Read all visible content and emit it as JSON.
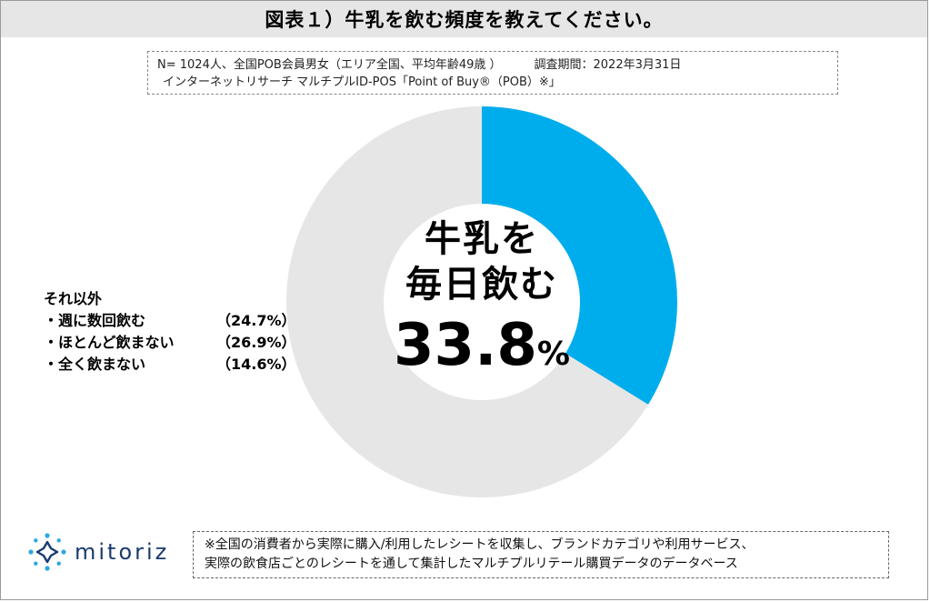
{
  "title": "図表１）牛乳を飲む頻度を教えてください。",
  "meta": {
    "sample": "N= 1024人、全国POB会員男女（エリア全国、平均年齢49歳 ）",
    "period": "調査期間：2022年3月31日",
    "method": "インターネットリサーチ マルチプルID-POS「Point of Buy®（POB）※」"
  },
  "legend": {
    "header": "それ以外",
    "items": [
      {
        "label": "・週に数回飲む",
        "value": "（24.7%）"
      },
      {
        "label": "・ほとんど飲まない",
        "value": "（26.9%）"
      },
      {
        "label": "・全く飲まない",
        "value": "（14.6%）"
      }
    ]
  },
  "center": {
    "line1": "牛乳を",
    "line2": "毎日飲む",
    "value": "33.8",
    "unit": "%"
  },
  "logo": {
    "name": "mitoriz",
    "icon": "sun-burst-icon",
    "color": "#1b3b6f"
  },
  "note": {
    "line1": "※全国の消費者から実際に購入/利用したレシートを収集し、ブランドカテゴリや利用サービス、",
    "line2": "実際の飲食店ごとのレシートを通して集計したマルチプルリテール購買データのデータベース"
  },
  "chart_data": {
    "type": "pie",
    "style": "donut",
    "title": "図表１）牛乳を飲む頻度を教えてください。",
    "categories": [
      "牛乳を毎日飲む",
      "それ以外"
    ],
    "values": [
      33.8,
      66.2
    ],
    "colors": [
      "#00adec",
      "#e7e6e6"
    ],
    "sub_breakdown": [
      {
        "label": "週に数回飲む",
        "value": 24.7
      },
      {
        "label": "ほとんど飲まない",
        "value": 26.9
      },
      {
        "label": "全く飲まない",
        "value": 14.6
      }
    ]
  }
}
